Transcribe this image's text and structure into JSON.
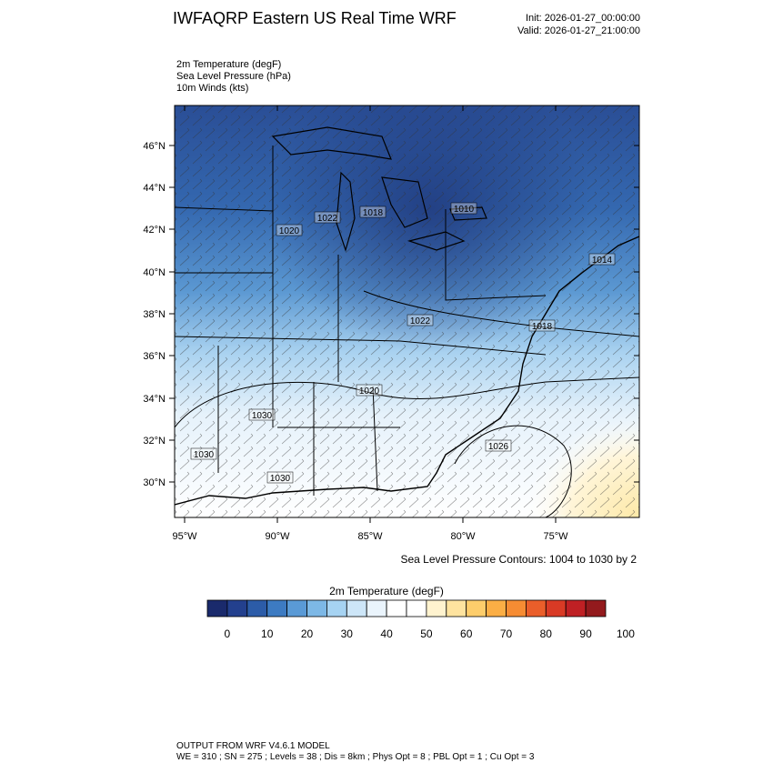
{
  "header": {
    "title": "IWFAQRP Eastern US Real Time WRF",
    "init": "Init: 2026-01-27_00:00:00",
    "valid": "Valid: 2026-01-27_21:00:00"
  },
  "variables": [
    "2m Temperature   (degF)",
    "Sea Level Pressure   (hPa)",
    "10m Winds   (kts)"
  ],
  "map": {
    "lat_labels": [
      "46°N",
      "44°N",
      "42°N",
      "40°N",
      "38°N",
      "36°N",
      "34°N",
      "32°N",
      "30°N"
    ],
    "lon_labels": [
      "95°W",
      "90°W",
      "85°W",
      "80°W",
      "75°W"
    ],
    "pressure_labels": [
      "1022",
      "1018",
      "1010",
      "1014",
      "1022",
      "1018",
      "1020",
      "1030",
      "1026",
      "1030",
      "1030",
      "1020"
    ],
    "contour_note": "Sea Level Pressure Contours: 1004 to 1030 by 2"
  },
  "colorbar": {
    "title": "2m Temperature  (degF)",
    "tick_labels": [
      "0",
      "10",
      "20",
      "30",
      "40",
      "50",
      "60",
      "70",
      "80",
      "90",
      "100"
    ],
    "colors": [
      "#1a2a6c",
      "#23408e",
      "#2c5ca8",
      "#3d7bc2",
      "#5a9ad6",
      "#7db8e6",
      "#a6d3f2",
      "#cde6f8",
      "#eaf4fc",
      "#ffffff",
      "#ffffff",
      "#fff3cf",
      "#fee39f",
      "#fdcd6b",
      "#fbae45",
      "#f68c33",
      "#ea5e2a",
      "#d93a25",
      "#bf2024",
      "#931a1d"
    ]
  },
  "footer": {
    "line1": "OUTPUT FROM WRF V4.6.1 MODEL",
    "line2": "WE = 310 ; SN = 275 ; Levels = 38 ; Dis = 8km ; Phys Opt = 8 ; PBL Opt = 1 ; Cu Opt = 3"
  }
}
